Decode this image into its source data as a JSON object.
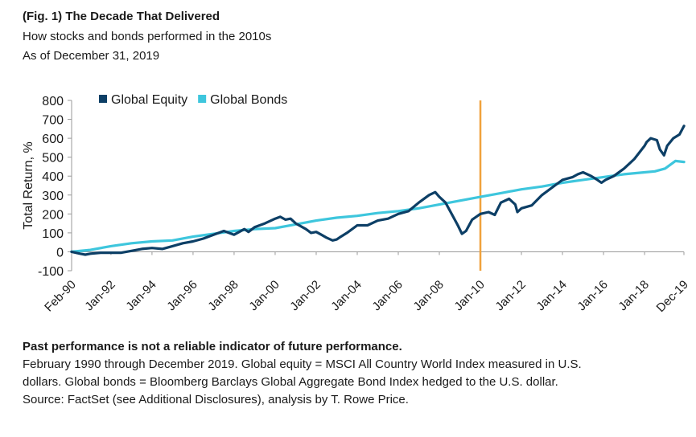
{
  "header": {
    "title": "(Fig. 1) The Decade That Delivered",
    "subtitle": "How stocks and bonds performed in the 2010s",
    "as_of": "As of December 31, 2019"
  },
  "colors": {
    "equity": "#0d3f66",
    "bonds": "#3ec6dd",
    "marker": "#f0a23c",
    "axis": "#9a9a9a",
    "text": "#1a1a1a"
  },
  "chart_data": {
    "type": "line",
    "ylabel": "Total Return, %",
    "ylim": [
      -100,
      800
    ],
    "yticks": [
      800,
      700,
      600,
      500,
      400,
      300,
      200,
      100,
      0,
      -100
    ],
    "xlim": [
      1990.083,
      2019.917
    ],
    "xticks": [
      {
        "label": "Feb-90",
        "x": 1990.083
      },
      {
        "label": "Jan-92",
        "x": 1992.0
      },
      {
        "label": "Jan-94",
        "x": 1994.0
      },
      {
        "label": "Jan-96",
        "x": 1996.0
      },
      {
        "label": "Jan-98",
        "x": 1998.0
      },
      {
        "label": "Jan-00",
        "x": 2000.0
      },
      {
        "label": "Jan-02",
        "x": 2002.0
      },
      {
        "label": "Jan-04",
        "x": 2004.0
      },
      {
        "label": "Jan-06",
        "x": 2006.0
      },
      {
        "label": "Jan-08",
        "x": 2008.0
      },
      {
        "label": "Jan-10",
        "x": 2010.0
      },
      {
        "label": "Jan-12",
        "x": 2012.0
      },
      {
        "label": "Jan-14",
        "x": 2014.0
      },
      {
        "label": "Jan-16",
        "x": 2016.0
      },
      {
        "label": "Jan-18",
        "x": 2018.0
      },
      {
        "label": "Dec-19",
        "x": 2019.917
      }
    ],
    "marker_x": 2010.0,
    "legend_position": "top-left",
    "series": [
      {
        "name": "Global Equity",
        "x": [
          1990.08,
          1990.5,
          1990.75,
          1991.0,
          1991.5,
          1992.0,
          1992.5,
          1993.0,
          1993.5,
          1994.0,
          1994.5,
          1995.0,
          1995.5,
          1996.0,
          1996.5,
          1997.0,
          1997.5,
          1997.75,
          1998.0,
          1998.5,
          1998.7,
          1999.0,
          1999.5,
          2000.0,
          2000.25,
          2000.5,
          2000.75,
          2001.0,
          2001.5,
          2001.75,
          2002.0,
          2002.25,
          2002.5,
          2002.8,
          2003.0,
          2003.2,
          2003.5,
          2004.0,
          2004.5,
          2005.0,
          2005.5,
          2006.0,
          2006.5,
          2007.0,
          2007.5,
          2007.8,
          2008.0,
          2008.3,
          2008.6,
          2008.9,
          2009.1,
          2009.3,
          2009.6,
          2010.0,
          2010.4,
          2010.7,
          2011.0,
          2011.4,
          2011.7,
          2011.8,
          2012.0,
          2012.5,
          2013.0,
          2013.5,
          2014.0,
          2014.5,
          2014.75,
          2015.0,
          2015.4,
          2015.7,
          2015.9,
          2016.1,
          2016.5,
          2017.0,
          2017.5,
          2018.0,
          2018.1,
          2018.3,
          2018.6,
          2018.75,
          2018.95,
          2019.1,
          2019.4,
          2019.7,
          2019.92
        ],
        "values": [
          0,
          -10,
          -15,
          -10,
          -5,
          -5,
          -5,
          5,
          15,
          20,
          15,
          30,
          45,
          55,
          70,
          90,
          110,
          100,
          90,
          120,
          105,
          130,
          150,
          175,
          185,
          170,
          175,
          150,
          120,
          100,
          105,
          90,
          75,
          60,
          65,
          80,
          100,
          140,
          140,
          165,
          175,
          200,
          215,
          260,
          300,
          315,
          290,
          260,
          200,
          140,
          95,
          110,
          170,
          200,
          210,
          195,
          260,
          280,
          250,
          210,
          230,
          245,
          300,
          340,
          380,
          395,
          410,
          420,
          400,
          380,
          365,
          380,
          400,
          440,
          490,
          560,
          580,
          600,
          590,
          540,
          510,
          560,
          600,
          620,
          665
        ]
      },
      {
        "name": "Global Bonds",
        "x": [
          1990.08,
          1991.0,
          1992.0,
          1993.0,
          1994.0,
          1995.0,
          1996.0,
          1997.0,
          1998.0,
          1999.0,
          2000.0,
          2001.0,
          2002.0,
          2003.0,
          2004.0,
          2005.0,
          2006.0,
          2007.0,
          2008.0,
          2009.0,
          2010.0,
          2011.0,
          2012.0,
          2013.0,
          2014.0,
          2015.0,
          2016.0,
          2017.0,
          2018.0,
          2018.5,
          2019.0,
          2019.5,
          2019.92
        ],
        "values": [
          0,
          10,
          30,
          45,
          55,
          60,
          80,
          95,
          110,
          120,
          125,
          145,
          165,
          180,
          190,
          205,
          215,
          230,
          250,
          270,
          290,
          310,
          330,
          345,
          365,
          380,
          395,
          410,
          420,
          425,
          440,
          480,
          475
        ]
      }
    ]
  },
  "notes": {
    "disclaimer": "Past performance is not a reliable indicator of future performance.",
    "line1": "February 1990 through December 2019. Global equity = MSCI All Country World Index measured in U.S.",
    "line2": "dollars. Global bonds = Bloomberg Barclays Global Aggregate Bond Index hedged to the U.S. dollar.",
    "line3": "Source: FactSet (see Additional Disclosures), analysis by T. Rowe Price."
  }
}
